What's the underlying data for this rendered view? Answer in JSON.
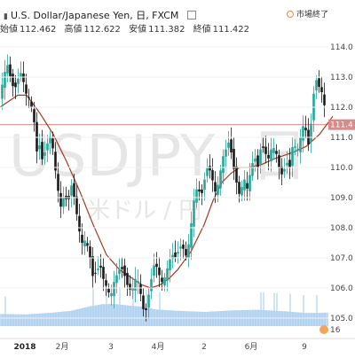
{
  "header": {
    "title": "U.S. Dollar/Japanese Yen, 日, FXCM",
    "ohlc": [
      {
        "label": "始値",
        "value": "112.462"
      },
      {
        "label": "高値",
        "value": "112.622"
      },
      {
        "label": "安値",
        "value": "111.382"
      },
      {
        "label": "終値",
        "value": "111.422"
      }
    ],
    "market_status": "市場終了"
  },
  "watermark": {
    "symbol": "USDJPY, 日",
    "name": "米ドル / 円"
  },
  "price_label": "111.4",
  "volume_badge": "16",
  "colors": {
    "up": "#26a69a",
    "down": "#ef5350",
    "candle_body": "#1a1a1a",
    "ma": "#a03b1f",
    "volume": "#a9cdee",
    "price_line": "#d98a8a",
    "status": "#e8893a"
  },
  "chart_data": {
    "type": "candlestick",
    "title": "U.S. Dollar/Japanese Yen, 日, FXCM",
    "ylim": [
      104.5,
      114.5
    ],
    "y_ticks": [
      "114.0",
      "113.0",
      "112.0",
      "111.0",
      "110.0",
      "109.0",
      "108.0",
      "107.0",
      "106.0",
      "105.0"
    ],
    "x_ticks": [
      "2018",
      "2月",
      "3",
      "4月",
      "2",
      "6月",
      "9"
    ],
    "x_tick_positions": [
      28,
      70,
      125,
      178,
      230,
      283,
      343
    ],
    "last_price": 111.422,
    "ohlc_last": {
      "open": 112.462,
      "high": 112.622,
      "low": 111.382,
      "close": 111.422
    },
    "close_path": [
      [
        0,
        112.4
      ],
      [
        4,
        113.1
      ],
      [
        8,
        113.4
      ],
      [
        12,
        112.9
      ],
      [
        15,
        112.6
      ],
      [
        18,
        112.7
      ],
      [
        22,
        113.2
      ],
      [
        25,
        113.0
      ],
      [
        28,
        112.5
      ],
      [
        32,
        112.3
      ],
      [
        35,
        112.0
      ],
      [
        38,
        111.5
      ],
      [
        40,
        110.3
      ],
      [
        43,
        111.0
      ],
      [
        46,
        110.2
      ],
      [
        50,
        110.5
      ],
      [
        54,
        110.9
      ],
      [
        57,
        111.1
      ],
      [
        60,
        110.4
      ],
      [
        64,
        109.4
      ],
      [
        68,
        108.7
      ],
      [
        72,
        109.1
      ],
      [
        76,
        108.8
      ],
      [
        80,
        109.4
      ],
      [
        84,
        108.9
      ],
      [
        88,
        108.0
      ],
      [
        92,
        107.5
      ],
      [
        96,
        107.6
      ],
      [
        100,
        107.2
      ],
      [
        104,
        106.4
      ],
      [
        108,
        106.5
      ],
      [
        112,
        106.8
      ],
      [
        116,
        106.3
      ],
      [
        120,
        106.0
      ],
      [
        124,
        105.7
      ],
      [
        128,
        106.2
      ],
      [
        132,
        106.5
      ],
      [
        136,
        106.7
      ],
      [
        140,
        106.4
      ],
      [
        144,
        106.0
      ],
      [
        148,
        105.9
      ],
      [
        152,
        106.3
      ],
      [
        156,
        106.2
      ],
      [
        160,
        105.4
      ],
      [
        163,
        105.1
      ],
      [
        166,
        105.6
      ],
      [
        170,
        106.3
      ],
      [
        174,
        106.9
      ],
      [
        178,
        106.5
      ],
      [
        182,
        106.2
      ],
      [
        186,
        106.4
      ],
      [
        190,
        106.9
      ],
      [
        194,
        107.1
      ],
      [
        198,
        107.0
      ],
      [
        202,
        107.4
      ],
      [
        206,
        107.3
      ],
      [
        210,
        107.0
      ],
      [
        214,
        107.9
      ],
      [
        218,
        108.9
      ],
      [
        222,
        109.4
      ],
      [
        226,
        109.0
      ],
      [
        230,
        109.6
      ],
      [
        234,
        110.1
      ],
      [
        238,
        109.7
      ],
      [
        242,
        109.2
      ],
      [
        246,
        109.5
      ],
      [
        250,
        110.3
      ],
      [
        254,
        110.6
      ],
      [
        258,
        110.9
      ],
      [
        262,
        110.1
      ],
      [
        266,
        109.5
      ],
      [
        270,
        109.0
      ],
      [
        274,
        109.7
      ],
      [
        278,
        109.3
      ],
      [
        282,
        109.9
      ],
      [
        286,
        110.4
      ],
      [
        290,
        110.0
      ],
      [
        294,
        110.8
      ],
      [
        298,
        110.5
      ],
      [
        302,
        110.3
      ],
      [
        306,
        110.7
      ],
      [
        310,
        110.6
      ],
      [
        314,
        110.0
      ],
      [
        318,
        109.7
      ],
      [
        322,
        110.2
      ],
      [
        326,
        110.0
      ],
      [
        330,
        110.9
      ],
      [
        334,
        110.5
      ],
      [
        338,
        111.0
      ],
      [
        342,
        111.5
      ],
      [
        345,
        111.1
      ],
      [
        348,
        110.6
      ],
      [
        352,
        112.3
      ],
      [
        356,
        112.9
      ],
      [
        360,
        112.6
      ],
      [
        364,
        112.4
      ],
      [
        367,
        111.4
      ]
    ],
    "ma_path": [
      [
        0,
        112.0
      ],
      [
        20,
        112.4
      ],
      [
        30,
        112.4
      ],
      [
        45,
        111.8
      ],
      [
        60,
        111.1
      ],
      [
        75,
        110.2
      ],
      [
        90,
        109.2
      ],
      [
        105,
        108.1
      ],
      [
        120,
        107.1
      ],
      [
        135,
        106.6
      ],
      [
        150,
        106.3
      ],
      [
        160,
        106.1
      ],
      [
        170,
        106.0
      ],
      [
        180,
        106.1
      ],
      [
        190,
        106.3
      ],
      [
        200,
        106.6
      ],
      [
        215,
        107.2
      ],
      [
        230,
        108.1
      ],
      [
        240,
        108.9
      ],
      [
        250,
        109.5
      ],
      [
        260,
        109.8
      ],
      [
        270,
        110.0
      ],
      [
        280,
        110.0
      ],
      [
        295,
        110.1
      ],
      [
        310,
        110.3
      ],
      [
        320,
        110.4
      ],
      [
        330,
        110.5
      ],
      [
        345,
        110.7
      ],
      [
        360,
        111.1
      ],
      [
        375,
        111.7
      ]
    ],
    "volume_profile": [
      [
        0,
        0.34
      ],
      [
        30,
        0.33
      ],
      [
        60,
        0.38
      ],
      [
        80,
        0.43
      ],
      [
        100,
        0.55
      ],
      [
        115,
        0.62
      ],
      [
        130,
        0.62
      ],
      [
        145,
        0.58
      ],
      [
        160,
        0.55
      ],
      [
        175,
        0.47
      ],
      [
        200,
        0.43
      ],
      [
        230,
        0.4
      ],
      [
        260,
        0.44
      ],
      [
        290,
        0.46
      ],
      [
        320,
        0.42
      ],
      [
        345,
        0.37
      ],
      [
        370,
        0.38
      ]
    ]
  }
}
